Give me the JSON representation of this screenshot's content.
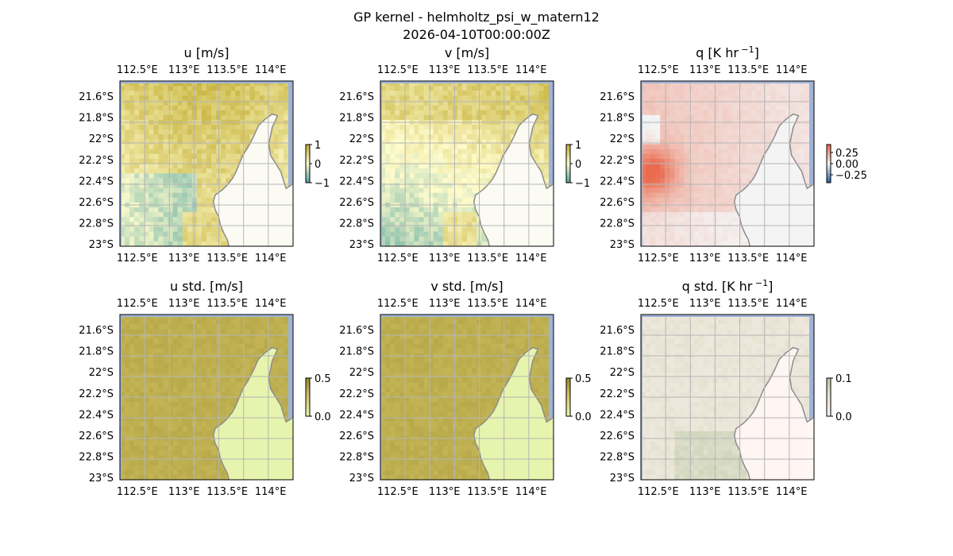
{
  "figure": {
    "suptitle": "GP kernel - helmholtz_psi_w_matern12",
    "timestamp": "2026-04-10T00:00:00Z"
  },
  "colors": {
    "ocean": "#9fb3d9",
    "land": "#fbfbf4",
    "coast": "#8c8c8c",
    "grid": "#b5b5b5",
    "u_v_cmap": [
      "#58a6a0",
      "#fffccc",
      "#c4ae33"
    ],
    "q_cmap": [
      "#2b65a7",
      "#f4f4f4",
      "#ea6a4d"
    ],
    "std_uv_cmap": [
      "#e9f7b0",
      "#d5c76a",
      "#9a8b2a"
    ],
    "std_q_cmap": [
      "#fff4f2",
      "#ece6d9",
      "#b7c9a5"
    ]
  },
  "chart_data": [
    {
      "type": "heatmap",
      "title": "u [m/s]",
      "lon_range": [
        112.35,
        114.2
      ],
      "lat_range": [
        -23.0,
        -21.45
      ],
      "xticks": [
        "112.5°E",
        "113°E",
        "113.5°E",
        "114°E"
      ],
      "yticks": [
        "21.6°S",
        "21.8°S",
        "22°S",
        "22.2°S",
        "22.4°S",
        "22.6°S",
        "22.8°S",
        "23°S"
      ],
      "colorbar": {
        "range": [
          -1,
          1
        ],
        "ticks": [
          "1",
          "0",
          "−1"
        ]
      },
      "field": "u",
      "grid": true
    },
    {
      "type": "heatmap",
      "title": "v [m/s]",
      "lon_range": [
        112.35,
        114.2
      ],
      "lat_range": [
        -23.0,
        -21.45
      ],
      "xticks": [
        "112.5°E",
        "113°E",
        "113.5°E",
        "114°E"
      ],
      "yticks": [
        "21.6°S",
        "21.8°S",
        "22°S",
        "22.2°S",
        "22.4°S",
        "22.6°S",
        "22.8°S",
        "23°S"
      ],
      "colorbar": {
        "range": [
          -1,
          1
        ],
        "ticks": [
          "1",
          "0",
          "−1"
        ]
      },
      "field": "v",
      "grid": true
    },
    {
      "type": "heatmap",
      "title": "q [K hr",
      "title_sup": "−1",
      "title_end": "]",
      "lon_range": [
        112.35,
        114.2
      ],
      "lat_range": [
        -23.0,
        -21.45
      ],
      "xticks": [
        "112.5°E",
        "113°E",
        "113.5°E",
        "114°E"
      ],
      "yticks": [
        "21.6°S",
        "21.8°S",
        "22°S",
        "22.2°S",
        "22.4°S",
        "22.6°S",
        "22.8°S",
        "23°S"
      ],
      "colorbar": {
        "range": [
          -0.35,
          0.35
        ],
        "ticks": [
          "0.25",
          "0.00",
          "−0.25"
        ]
      },
      "field": "q",
      "grid": true
    },
    {
      "type": "heatmap",
      "title": "u std. [m/s]",
      "lon_range": [
        112.35,
        114.2
      ],
      "lat_range": [
        -23.0,
        -21.45
      ],
      "xticks": [
        "112.5°E",
        "113°E",
        "113.5°E",
        "114°E"
      ],
      "yticks": [
        "21.6°S",
        "21.8°S",
        "22°S",
        "22.2°S",
        "22.4°S",
        "22.6°S",
        "22.8°S",
        "23°S"
      ],
      "colorbar": {
        "range": [
          0,
          0.5
        ],
        "ticks": [
          "0.5",
          "0.0"
        ]
      },
      "field": "std_u",
      "grid": true
    },
    {
      "type": "heatmap",
      "title": "v std. [m/s]",
      "lon_range": [
        112.35,
        114.2
      ],
      "lat_range": [
        -23.0,
        -21.45
      ],
      "xticks": [
        "112.5°E",
        "113°E",
        "113.5°E",
        "114°E"
      ],
      "yticks": [
        "21.6°S",
        "21.8°S",
        "22°S",
        "22.2°S",
        "22.4°S",
        "22.6°S",
        "22.8°S",
        "23°S"
      ],
      "colorbar": {
        "range": [
          0,
          0.5
        ],
        "ticks": [
          "0.5",
          "0.0"
        ]
      },
      "field": "std_v",
      "grid": true
    },
    {
      "type": "heatmap",
      "title": "q std. [K hr",
      "title_sup": "−1",
      "title_end": "]",
      "lon_range": [
        112.35,
        114.2
      ],
      "lat_range": [
        -23.0,
        -21.45
      ],
      "xticks": [
        "112.5°E",
        "113°E",
        "113.5°E",
        "114°E"
      ],
      "yticks": [
        "21.6°S",
        "21.8°S",
        "22°S",
        "22.2°S",
        "22.4°S",
        "22.6°S",
        "22.8°S",
        "23°S"
      ],
      "colorbar": {
        "range": [
          0,
          0.1
        ],
        "ticks": [
          "0.1",
          "0.0"
        ]
      },
      "field": "std_q",
      "grid": true
    }
  ]
}
